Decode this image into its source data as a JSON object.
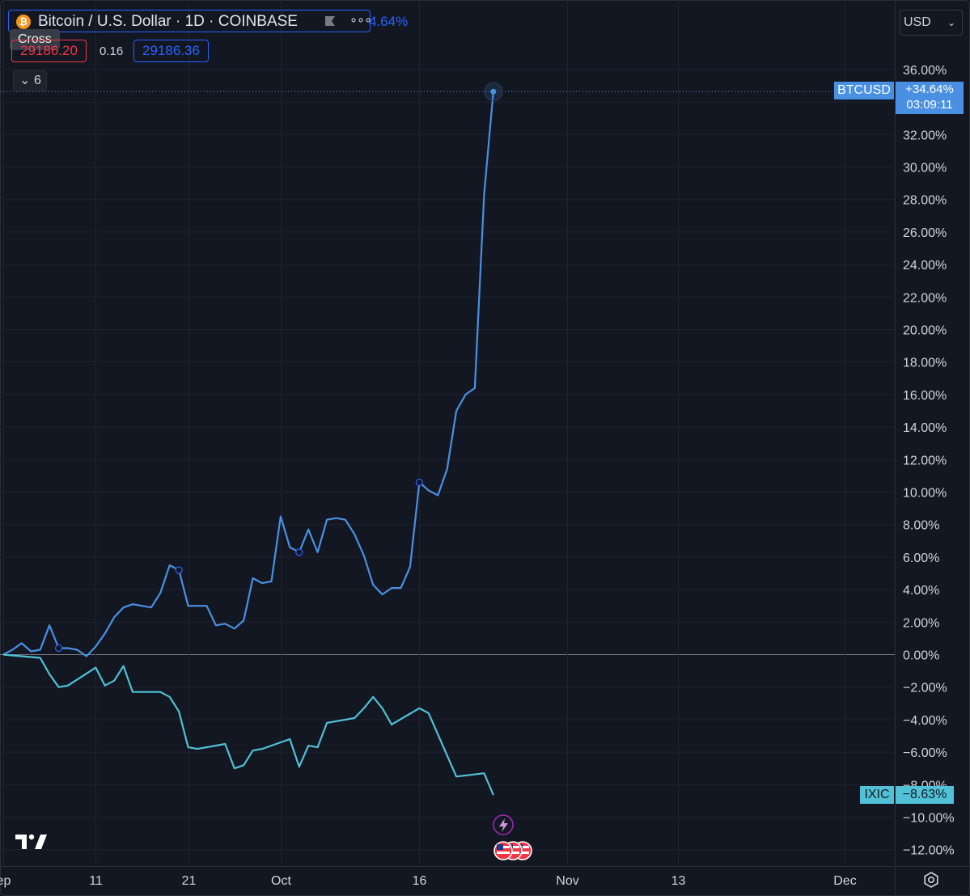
{
  "header": {
    "title": "Bitcoin / U.S. Dollar · 1D · COINBASE",
    "change": "+34.64%",
    "visible_change_fragment": "4.64%",
    "cross_tooltip": "Cross",
    "price_sell": "29186.20",
    "spread": "0.16",
    "price_buy": "29186.36",
    "indicators_collapsed_count": "6",
    "currency": "USD"
  },
  "labels": {
    "btc_name": "BTCUSD",
    "btc_value": "+34.64%",
    "btc_countdown": "03:09:11",
    "ixic_name": "IXIC",
    "ixic_value": "−8.63%"
  },
  "colors": {
    "background": "#131722",
    "btc_line": "#4a90e2",
    "ixic_line": "#50c1d6",
    "grid": "#2a2e39",
    "accent_blue": "#2962ff",
    "accent_red": "#f23645"
  },
  "icons": [
    "bitcoin-icon",
    "flag-icon",
    "more-icon",
    "chevron-down-icon",
    "tradingview-logo-icon",
    "lightning-event-icon",
    "us-flag-event-icon",
    "settings-icon"
  ],
  "chart_data": {
    "type": "line",
    "title": "Bitcoin / U.S. Dollar · 1D · COINBASE",
    "xlabel": "",
    "ylabel": "",
    "y_unit": "%",
    "ylim": [
      -13,
      37
    ],
    "grid": true,
    "y_ticks": [
      "36.00%",
      "34.00%",
      "32.00%",
      "30.00%",
      "28.00%",
      "26.00%",
      "24.00%",
      "22.00%",
      "20.00%",
      "18.00%",
      "16.00%",
      "14.00%",
      "12.00%",
      "10.00%",
      "8.00%",
      "6.00%",
      "4.00%",
      "2.00%",
      "0.00%",
      "−2.00%",
      "−4.00%",
      "−6.00%",
      "−8.00%",
      "−10.00%",
      "−12.00%"
    ],
    "y_tick_values": [
      36,
      34,
      32,
      30,
      28,
      26,
      24,
      22,
      20,
      18,
      16,
      14,
      12,
      10,
      8,
      6,
      4,
      2,
      0,
      -2,
      -4,
      -6,
      -8,
      -10,
      -12
    ],
    "x_tick_labels": [
      "ep",
      "11",
      "21",
      "Oct",
      "16",
      "Nov",
      "13",
      "Dec"
    ],
    "x_tick_dates": [
      "2023-09-01",
      "2023-09-11",
      "2023-09-21",
      "2023-10-01",
      "2023-10-16",
      "2023-11-01",
      "2023-11-13",
      "2023-12-01"
    ],
    "x_range": [
      "2023-09-01",
      "2023-12-06"
    ],
    "series": [
      {
        "name": "BTCUSD",
        "x": [
          "2023-09-01",
          "2023-09-02",
          "2023-09-03",
          "2023-09-04",
          "2023-09-05",
          "2023-09-06",
          "2023-09-07",
          "2023-09-08",
          "2023-09-09",
          "2023-09-10",
          "2023-09-11",
          "2023-09-12",
          "2023-09-13",
          "2023-09-14",
          "2023-09-15",
          "2023-09-16",
          "2023-09-17",
          "2023-09-18",
          "2023-09-19",
          "2023-09-20",
          "2023-09-21",
          "2023-09-22",
          "2023-09-23",
          "2023-09-24",
          "2023-09-25",
          "2023-09-26",
          "2023-09-27",
          "2023-09-28",
          "2023-09-29",
          "2023-09-30",
          "2023-10-01",
          "2023-10-02",
          "2023-10-03",
          "2023-10-04",
          "2023-10-05",
          "2023-10-06",
          "2023-10-07",
          "2023-10-08",
          "2023-10-09",
          "2023-10-10",
          "2023-10-11",
          "2023-10-12",
          "2023-10-13",
          "2023-10-14",
          "2023-10-15",
          "2023-10-16",
          "2023-10-17",
          "2023-10-18",
          "2023-10-19",
          "2023-10-20",
          "2023-10-21",
          "2023-10-22",
          "2023-10-23",
          "2023-10-24"
        ],
        "values": [
          0.0,
          0.3,
          0.7,
          0.2,
          0.3,
          1.8,
          0.4,
          0.4,
          0.3,
          -0.1,
          0.5,
          1.3,
          2.3,
          2.9,
          3.1,
          3.0,
          2.9,
          3.8,
          5.5,
          5.2,
          3.0,
          3.0,
          3.0,
          1.8,
          1.9,
          1.6,
          2.1,
          4.7,
          4.4,
          4.5,
          8.5,
          6.6,
          6.3,
          7.7,
          6.3,
          8.3,
          8.4,
          8.3,
          7.4,
          6.1,
          4.3,
          3.7,
          4.1,
          4.1,
          5.4,
          10.6,
          10.1,
          9.8,
          11.4,
          15.0,
          16.0,
          16.4,
          28.3,
          34.64
        ]
      },
      {
        "name": "IXIC",
        "x": [
          "2023-09-01",
          "2023-09-05",
          "2023-09-06",
          "2023-09-07",
          "2023-09-08",
          "2023-09-11",
          "2023-09-12",
          "2023-09-13",
          "2023-09-14",
          "2023-09-15",
          "2023-09-18",
          "2023-09-19",
          "2023-09-20",
          "2023-09-21",
          "2023-09-22",
          "2023-09-25",
          "2023-09-26",
          "2023-09-27",
          "2023-09-28",
          "2023-09-29",
          "2023-10-02",
          "2023-10-03",
          "2023-10-04",
          "2023-10-05",
          "2023-10-06",
          "2023-10-09",
          "2023-10-10",
          "2023-10-11",
          "2023-10-12",
          "2023-10-13",
          "2023-10-16",
          "2023-10-17",
          "2023-10-18",
          "2023-10-19",
          "2023-10-20",
          "2023-10-23",
          "2023-10-24"
        ],
        "values": [
          0.0,
          -0.2,
          -1.2,
          -2.0,
          -1.9,
          -0.8,
          -1.9,
          -1.6,
          -0.7,
          -2.3,
          -2.3,
          -2.6,
          -3.5,
          -5.7,
          -5.8,
          -5.5,
          -7.0,
          -6.8,
          -5.9,
          -5.8,
          -5.2,
          -6.9,
          -5.6,
          -5.7,
          -4.2,
          -3.9,
          -3.3,
          -2.6,
          -3.3,
          -4.3,
          -3.3,
          -3.6,
          -4.9,
          -6.2,
          -7.5,
          -7.3,
          -8.63
        ]
      }
    ],
    "last_values": {
      "BTCUSD": "+34.64%",
      "IXIC": "−8.63%"
    }
  }
}
